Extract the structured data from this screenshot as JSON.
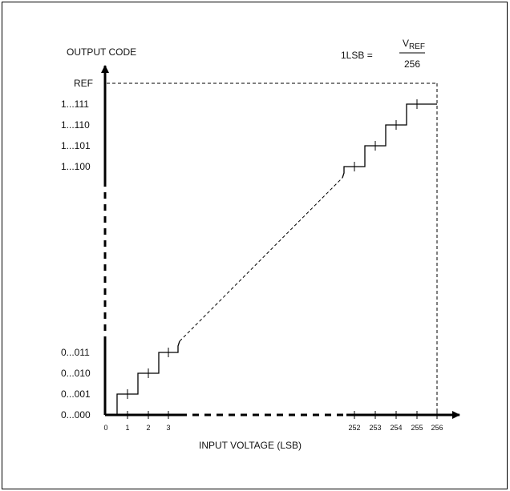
{
  "y_axis": {
    "title": "OUTPUT CODE",
    "labels": [
      "REF",
      "1...111",
      "1...110",
      "1...101",
      "1...100",
      "0...011",
      "0...010",
      "0...001",
      "0...000"
    ]
  },
  "x_axis": {
    "title": "INPUT VOLTAGE (LSB)",
    "ticks": [
      "0",
      "1",
      "2",
      "3",
      "252",
      "253",
      "254",
      "255",
      "256"
    ]
  },
  "formula": {
    "lhs": "1LSB =",
    "numerator_main": "V",
    "numerator_sub": "REF",
    "denominator": "256"
  },
  "colors": {
    "line": "#000000",
    "background": "#ffffff"
  }
}
